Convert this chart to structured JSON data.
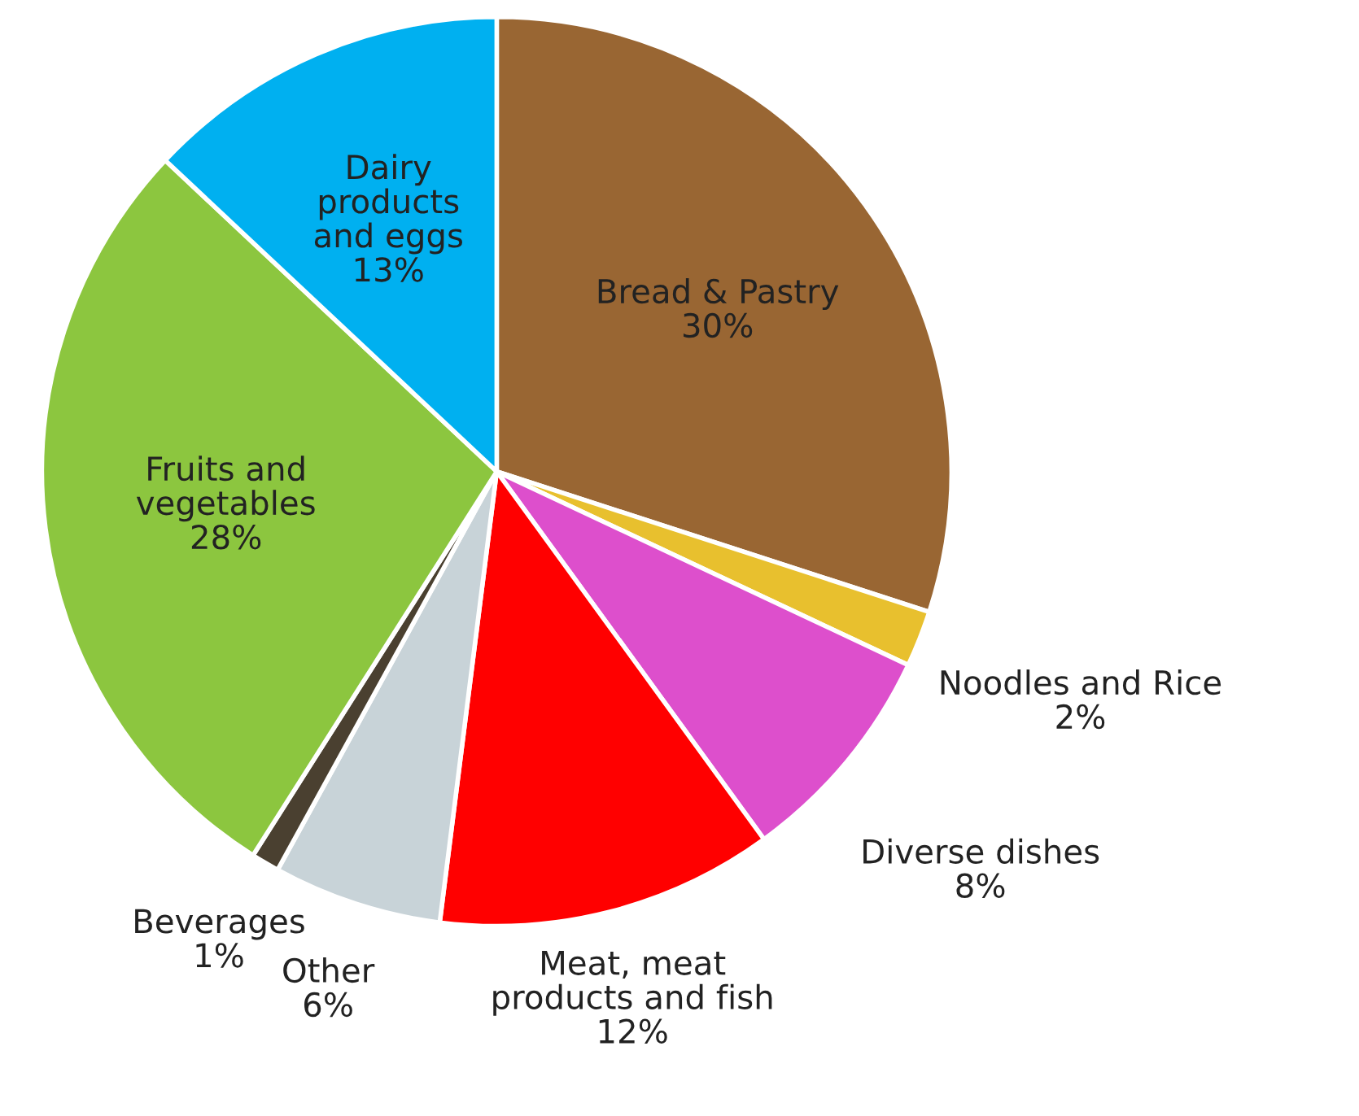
{
  "chart_data": {
    "type": "pie",
    "categories": [
      "Bread & Pastry",
      "Noodles and Rice",
      "Diverse dishes",
      "Meat, meat\nproducts and fish",
      "Other",
      "Beverages",
      "Fruits and\nvegetables",
      "Dairy\nproducts\nand eggs"
    ],
    "values": [
      30,
      2,
      8,
      12,
      6,
      1,
      28,
      13
    ],
    "value_labels": [
      "30%",
      "2%",
      "8%",
      "12%",
      "6%",
      "1%",
      "28%",
      "13%"
    ],
    "colors": [
      "#996633",
      "#e8c02e",
      "#dd4fcc",
      "#ff0000",
      "#c8d3d8",
      "#4a4030",
      "#8cc63f",
      "#00b0f0"
    ],
    "legend": false
  }
}
